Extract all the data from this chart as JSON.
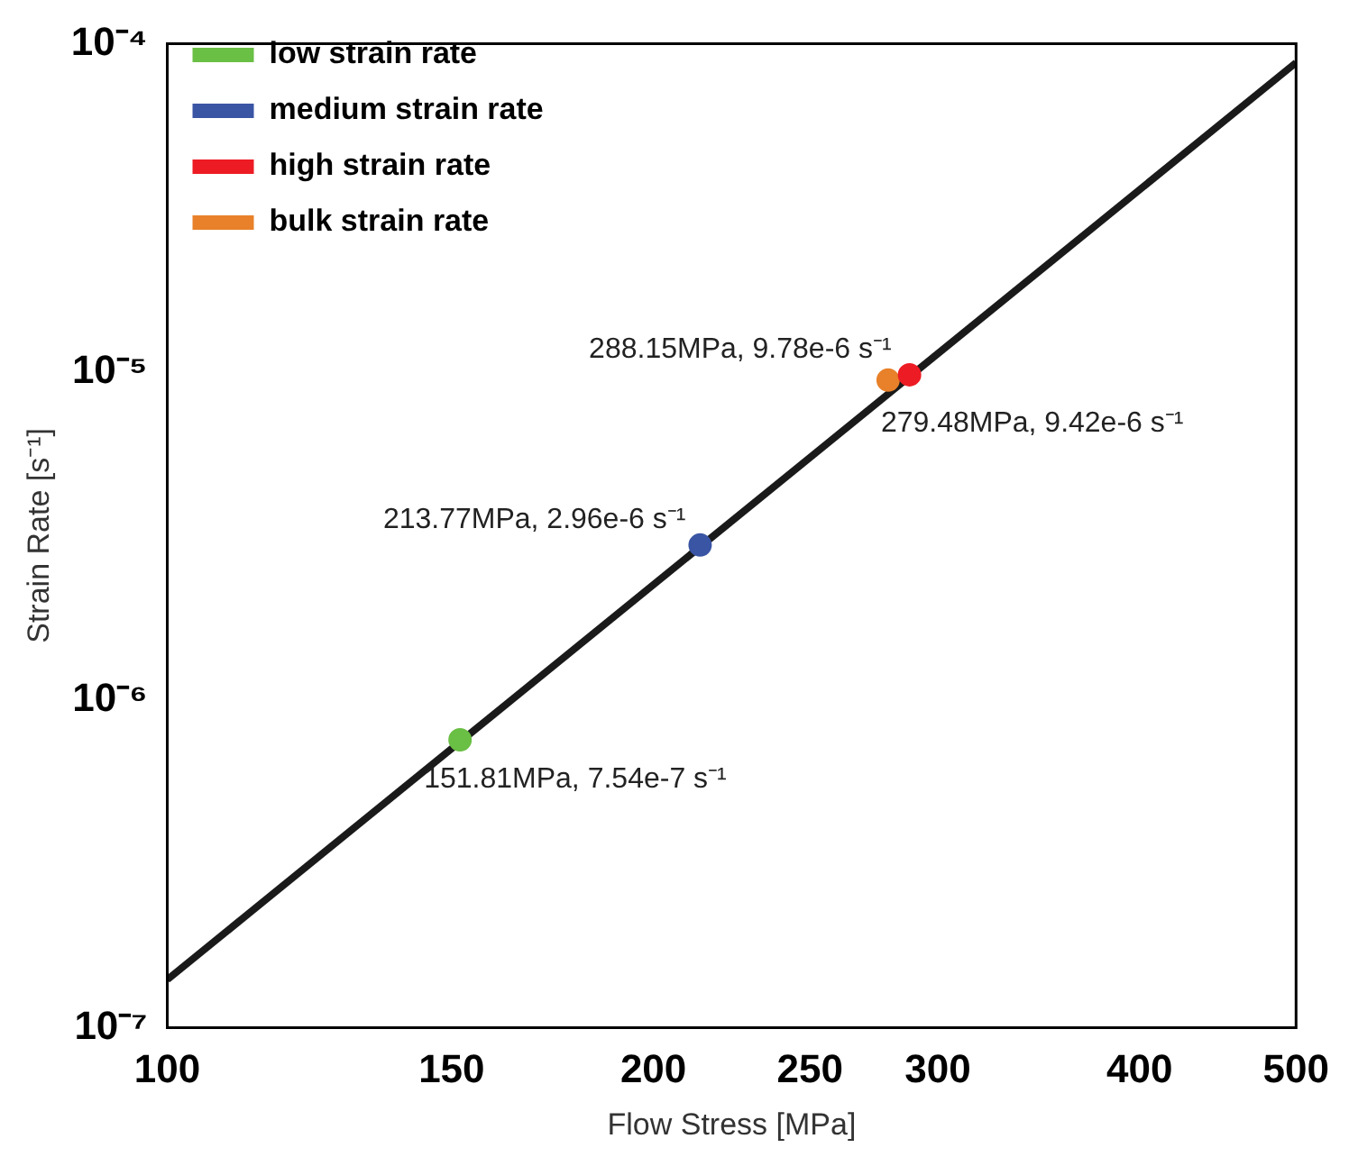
{
  "chart_data": {
    "type": "scatter",
    "xlabel": "Flow Stress [MPa]",
    "ylabel": "Strain Rate [s⁻¹]",
    "log": "xy",
    "xlim": [
      100,
      500
    ],
    "xticks": [
      100,
      150,
      200,
      250,
      300,
      400,
      500
    ],
    "ylim": [
      1e-07,
      0.0001
    ],
    "yticks": [
      {
        "value": 1e-07,
        "label": "10⁻⁷"
      },
      {
        "value": 1e-06,
        "label": "10⁻⁶"
      },
      {
        "value": 1e-05,
        "label": "10⁻⁵"
      },
      {
        "value": 0.0001,
        "label": "10⁻⁴"
      }
    ],
    "grid": false,
    "legend": "top left",
    "marker": "circle",
    "series": [
      {
        "type": "line",
        "color": "#1a1a1a",
        "x": [
          100,
          500
        ],
        "values": [
          1.4e-07,
          8.75e-05
        ],
        "marker": "none",
        "line_style": "solid"
      },
      {
        "name": "low strain rate",
        "color": "#6abf45",
        "x": [
          151.81
        ],
        "values": [
          7.54e-07
        ]
      },
      {
        "name": "medium strain rate",
        "color": "#3a55a4",
        "x": [
          213.77
        ],
        "values": [
          2.96e-06
        ]
      },
      {
        "name": "high strain rate",
        "color": "#ed1c24",
        "x": [
          288.15
        ],
        "values": [
          9.78e-06
        ]
      },
      {
        "name": "bulk strain rate",
        "color": "#e8812a",
        "x": [
          279.48
        ],
        "values": [
          9.42e-06
        ]
      }
    ],
    "annotations": [
      {
        "text": "151.81MPa, 7.54e-7 s⁻¹",
        "x": 151.81,
        "y": 7.54e-07
      },
      {
        "text": "213.77MPa, 2.96e-6 s⁻¹",
        "x": 213.77,
        "y": 2.96e-06
      },
      {
        "text": "288.15MPa, 9.78e-6 s⁻¹",
        "x": 288.15,
        "y": 9.78e-06
      },
      {
        "text": "279.48MPa, 9.42e-6 s⁻¹",
        "x": 279.48,
        "y": 9.42e-06
      }
    ]
  }
}
